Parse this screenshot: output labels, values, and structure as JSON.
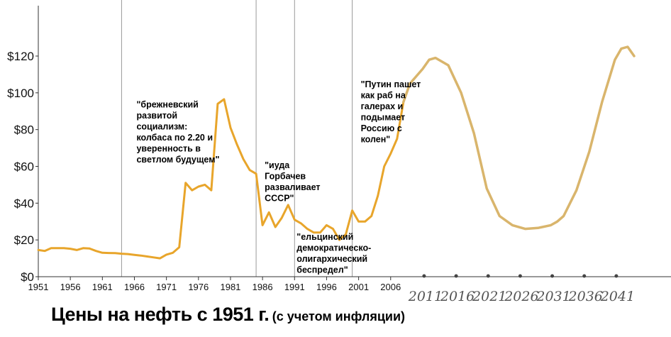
{
  "chart_data": {
    "type": "line",
    "title": "Цены на нефть с 1951 г.",
    "subtitle": "(с учетом инфляции)",
    "xlabel": "",
    "ylabel": "",
    "ylim": [
      0,
      120
    ],
    "xlim": [
      1951,
      2044
    ],
    "y_ticks": [
      "$0",
      "$20",
      "$40",
      "$60",
      "$80",
      "$100",
      "$120"
    ],
    "x_ticks_printed": [
      "1951",
      "1956",
      "1961",
      "1966",
      "1971",
      "1976",
      "1981",
      "1986",
      "1991",
      "1996",
      "2001",
      "2006"
    ],
    "x_ticks_handwritten": [
      "2011",
      "2016",
      "2021",
      "2026",
      "2031",
      "2036",
      "2041"
    ],
    "grid": false,
    "line_color": "#e8a52b",
    "extension_color": "#d9b56c",
    "separators_x": [
      1964,
      1985,
      1991,
      2000
    ],
    "series": [
      {
        "x": [
          1951,
          1952,
          1953,
          1954,
          1955,
          1956,
          1957,
          1958,
          1959,
          1960,
          1961,
          1962,
          1963,
          1964,
          1965,
          1966,
          1967,
          1968,
          1969,
          1970,
          1971,
          1972,
          1973,
          1974,
          1975,
          1976,
          1977,
          1978,
          1979,
          1980,
          1981,
          1982,
          1983,
          1984,
          1985,
          1986,
          1987,
          1988,
          1989,
          1990,
          1991,
          1992,
          1993,
          1994,
          1995,
          1996,
          1997,
          1998,
          1999,
          2000,
          2001,
          2002,
          2003,
          2004,
          2005,
          2006,
          2007,
          2008
        ],
        "values": [
          14.5,
          14,
          15.5,
          15.5,
          15.5,
          15.2,
          14.5,
          15.5,
          15.3,
          14,
          13,
          12.9,
          12.8,
          12.5,
          12.3,
          11.9,
          11.5,
          11,
          10.5,
          10,
          12,
          13,
          16,
          51,
          47,
          49,
          50,
          47,
          94,
          96.5,
          81,
          72,
          64,
          58,
          56,
          28,
          35,
          27,
          32,
          39,
          31,
          29,
          26,
          24,
          24,
          28,
          26,
          20,
          23,
          36,
          30,
          30,
          33,
          44,
          60,
          67,
          75,
          95
        ]
      },
      {
        "x": [
          2008,
          2009,
          2011,
          2012,
          2013,
          2015,
          2017,
          2019,
          2021,
          2023,
          2025,
          2027,
          2029,
          2031,
          2032,
          2033,
          2035,
          2037,
          2039,
          2041,
          2042,
          2043,
          2044
        ],
        "values": [
          95,
          105,
          113,
          118,
          119,
          115,
          100,
          78,
          48,
          33,
          28,
          26,
          26.5,
          28,
          30,
          33,
          47,
          68,
          95,
          118,
          124,
          125,
          120
        ]
      }
    ],
    "annotations": [
      {
        "x": 1966,
        "y": 92,
        "lines": [
          "\"брежневский",
          "развитой",
          "социализм:",
          "колбаса по 2.20 и",
          "уверенность в",
          "светлом будущем\""
        ]
      },
      {
        "x": 1986,
        "y": 59,
        "lines": [
          "\"иуда",
          "Горбачев",
          "разваливает",
          "СССР\""
        ]
      },
      {
        "x": 1991,
        "y": 20,
        "lines": [
          "\"ельцинский",
          "демократическо-",
          "олигархический",
          "беспредел\""
        ]
      },
      {
        "x": 2001,
        "y": 103,
        "lines": [
          "\"Путин пашет",
          "как раб на",
          "галерах и",
          "подымает",
          "Россию с",
          "колен\""
        ]
      }
    ]
  }
}
